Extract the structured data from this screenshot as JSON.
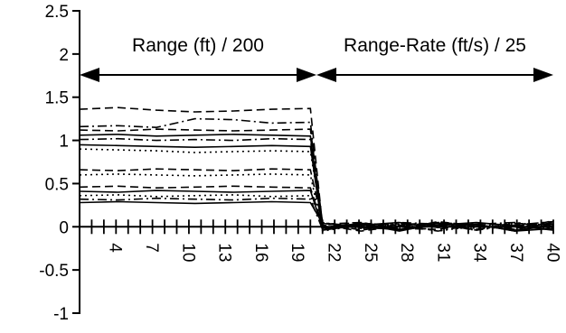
{
  "chart_data": {
    "type": "line",
    "title": "",
    "xlabel": "",
    "ylabel": "",
    "ylim": [
      -1,
      2.5
    ],
    "xlim": [
      1,
      40
    ],
    "grid": false,
    "legend": "none",
    "y_ticks": [
      -1,
      -0.5,
      0,
      0.5,
      1,
      1.5,
      2,
      2.5
    ],
    "y_tick_labels": [
      "-1",
      "-0.5",
      "0",
      "0.5",
      "1",
      "1.5",
      "2",
      "2.5"
    ],
    "x_ticks": [
      4,
      7,
      10,
      13,
      16,
      19,
      22,
      25,
      28,
      31,
      34,
      37,
      40
    ],
    "x_tick_labels": [
      "4",
      "7",
      "10",
      "13",
      "16",
      "19",
      "22",
      "25",
      "28",
      "31",
      "34",
      "37",
      "40"
    ],
    "annotations": [
      {
        "id": "range",
        "text": "Range (ft) / 200",
        "x_from": 1,
        "x_to": 20.5
      },
      {
        "id": "range-rate",
        "text": "Range-Rate (ft/s) / 25",
        "x_from": 20.5,
        "x_to": 40
      }
    ],
    "series": [
      {
        "style": "dashed",
        "segment1": [
          1.36,
          1.38,
          1.35,
          1.33,
          1.34,
          1.36,
          1.37
        ],
        "segment2": [
          0.02,
          0.05,
          -0.03,
          0.06,
          0.01,
          -0.02,
          0.07
        ]
      },
      {
        "style": "dashdot",
        "segment1": [
          1.16,
          1.17,
          1.15,
          1.25,
          1.24,
          1.2,
          1.21
        ],
        "segment2": [
          -0.03,
          0.04,
          0.02,
          -0.05,
          0.03,
          0.05,
          -0.02
        ]
      },
      {
        "style": "dashed",
        "segment1": [
          1.12,
          1.11,
          1.13,
          1.12,
          1.11,
          1.12,
          1.13
        ],
        "segment2": [
          0.05,
          -0.04,
          0.03,
          0.01,
          -0.03,
          0.04,
          0.02
        ]
      },
      {
        "style": "solid",
        "segment1": [
          1.06,
          1.07,
          1.05,
          1.06,
          1.07,
          1.06,
          1.05
        ],
        "segment2": [
          -0.02,
          0.03,
          -0.05,
          0.04,
          0.02,
          -0.04,
          0.01
        ]
      },
      {
        "style": "dashdot",
        "segment1": [
          1.01,
          1.02,
          1.0,
          1.01,
          1.0,
          1.02,
          1.01
        ],
        "segment2": [
          0.04,
          0.01,
          -0.02,
          0.05,
          -0.03,
          0.02,
          0.06
        ]
      },
      {
        "style": "solid",
        "segment1": [
          0.95,
          0.94,
          0.93,
          0.92,
          0.93,
          0.94,
          0.93
        ],
        "segment2": [
          -0.04,
          0.02,
          0.05,
          -0.01,
          0.03,
          -0.05,
          0.03
        ]
      },
      {
        "style": "dotted",
        "segment1": [
          0.9,
          0.89,
          0.88,
          0.86,
          0.87,
          0.88,
          0.87
        ],
        "segment2": [
          0.01,
          -0.03,
          0.04,
          0.02,
          -0.04,
          0.05,
          -0.01
        ]
      },
      {
        "style": "dashed",
        "segment1": [
          0.66,
          0.65,
          0.67,
          0.66,
          0.65,
          0.67,
          0.66
        ],
        "segment2": [
          0.03,
          0.05,
          -0.02,
          -0.03,
          0.04,
          0.01,
          0.04
        ]
      },
      {
        "style": "dotted",
        "segment1": [
          0.6,
          0.61,
          0.6,
          0.59,
          0.6,
          0.61,
          0.6
        ],
        "segment2": [
          -0.05,
          0.02,
          0.03,
          0.04,
          -0.02,
          0.03,
          -0.03
        ]
      },
      {
        "style": "dashed",
        "segment1": [
          0.46,
          0.47,
          0.45,
          0.46,
          0.47,
          0.46,
          0.45
        ],
        "segment2": [
          0.02,
          -0.05,
          0.01,
          0.05,
          0.02,
          -0.03,
          0.05
        ]
      },
      {
        "style": "solid",
        "segment1": [
          0.41,
          0.4,
          0.42,
          0.41,
          0.4,
          0.41,
          0.42
        ],
        "segment2": [
          -0.01,
          0.04,
          -0.04,
          0.02,
          0.05,
          0.01,
          -0.04
        ]
      },
      {
        "style": "dotted",
        "segment1": [
          0.36,
          0.37,
          0.35,
          0.36,
          0.37,
          0.35,
          0.36
        ],
        "segment2": [
          0.05,
          -0.02,
          0.03,
          -0.05,
          0.01,
          0.04,
          0.02
        ]
      },
      {
        "style": "dashdot",
        "segment1": [
          0.32,
          0.31,
          0.33,
          0.32,
          0.31,
          0.33,
          0.32
        ],
        "segment2": [
          -0.03,
          0.01,
          0.05,
          0.03,
          -0.04,
          0.02,
          0.03
        ]
      },
      {
        "style": "solid",
        "segment1": [
          0.28,
          0.29,
          0.28,
          0.27,
          0.28,
          0.29,
          0.28
        ],
        "segment2": [
          0.04,
          -0.01,
          -0.03,
          0.02,
          0.03,
          -0.05,
          -0.02
        ]
      }
    ]
  }
}
